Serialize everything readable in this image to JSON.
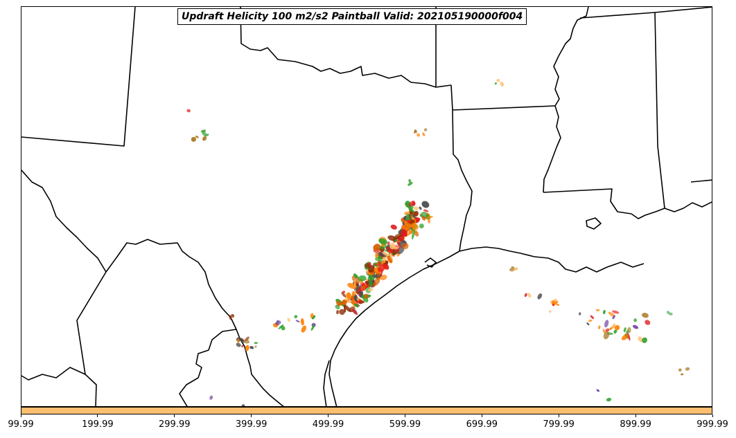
{
  "title": "Updraft Helicity 100 m2/s2 Paintball Valid: 202105190000f004",
  "colors": {
    "colorbar_fill": "#fdbf6f",
    "boundary": "#000000",
    "paintball_palette": [
      "#e31a1c",
      "#ff7f00",
      "#fdbf6f",
      "#33a02c",
      "#1f9e1f",
      "#b2df8a",
      "#a6761d",
      "#8c2d04",
      "#4d4d4d",
      "#6a3d9a",
      "#5aae61",
      "#d95f02"
    ]
  },
  "colorbar": {
    "tick_labels": [
      "99.99",
      "199.99",
      "299.99",
      "399.99",
      "499.99",
      "599.99",
      "699.99",
      "799.99",
      "899.99",
      "999.99"
    ]
  },
  "map": {
    "features": [
      "state-boundaries",
      "coastline",
      "international-border"
    ]
  }
}
